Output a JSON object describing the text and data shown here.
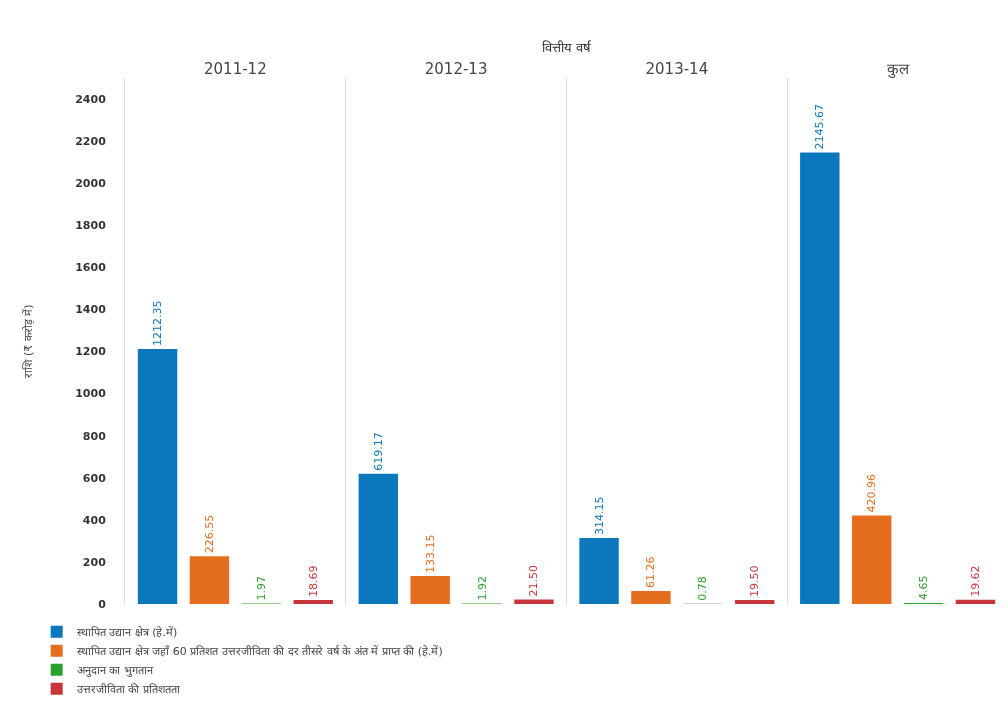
{
  "chart_data": {
    "type": "bar",
    "xlabel": "वित्तीय वर्ष",
    "ylabel": "राशि (₹ करोड़ में)",
    "categories": [
      "2011-12",
      "2012-13",
      "2013-14",
      "कुल"
    ],
    "series": [
      {
        "name": "स्थापित उद्यान क्षेत्र (हे.में)",
        "color": "#0b78bd",
        "values": [
          1212.35,
          619.17,
          314.15,
          2145.67
        ],
        "value_labels": [
          "1212.35",
          "619.17",
          "314.15",
          "2145.67"
        ]
      },
      {
        "name": "स्थापित उद्यान क्षेत्र जहाँ 60 प्रतिशत उत्तरजीविता की दर तीसरे वर्ष के अंत में प्राप्त की (हे.में)",
        "color": "#e46e1e",
        "values": [
          226.55,
          133.15,
          61.26,
          420.96
        ],
        "value_labels": [
          "226.55",
          "133.15",
          "61.26",
          "420.96"
        ]
      },
      {
        "name": "अनुदान का भुगतान",
        "color": "#2ca02c",
        "values": [
          1.97,
          1.92,
          0.78,
          4.65
        ],
        "value_labels": [
          "1.97",
          "1.92",
          "0.78",
          "4.65"
        ]
      },
      {
        "name": "उत्तरजीविता की प्रतिशतता",
        "color": "#c8363a",
        "values": [
          18.69,
          21.5,
          19.5,
          19.62
        ],
        "value_labels": [
          "18.69",
          "21.50",
          "19.50",
          "19.62"
        ]
      }
    ],
    "ylim": [
      0,
      2500
    ],
    "yticks": [
      0,
      200,
      400,
      600,
      800,
      1000,
      1200,
      1400,
      1600,
      1800,
      2000,
      2200,
      2400
    ],
    "grid": "x",
    "legend": "bottom left"
  }
}
